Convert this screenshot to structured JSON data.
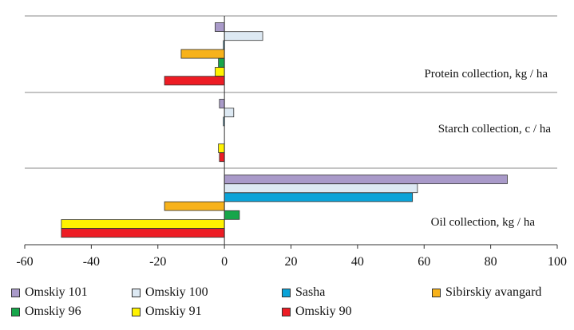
{
  "chart_data": {
    "type": "bar",
    "orientation": "horizontal",
    "xlim": [
      -60,
      100
    ],
    "xticks": [
      -60,
      -40,
      -20,
      0,
      20,
      40,
      60,
      80,
      100
    ],
    "grid": false,
    "groups": [
      {
        "label": "Protein collection, kg / ha"
      },
      {
        "label": "Starch collection, c / ha"
      },
      {
        "label": "Oil collection, kg / ha"
      }
    ],
    "series": [
      {
        "name": "Omskiy 101",
        "color": "#a99ac9",
        "values": [
          -2.8,
          -1.5,
          85
        ]
      },
      {
        "name": "Omskiy 100",
        "color": "#dde9f3",
        "values": [
          11.5,
          2.8,
          58
        ]
      },
      {
        "name": "Sasha",
        "color": "#0aa3d8",
        "values": [
          -0.3,
          -0.3,
          56.5
        ]
      },
      {
        "name": "Sibirskiy avangard",
        "color": "#f7b21b",
        "values": [
          -13,
          0,
          -18
        ]
      },
      {
        "name": "Omskiy 96",
        "color": "#17a64a",
        "values": [
          -1.8,
          0,
          4.5
        ]
      },
      {
        "name": "Omskiy 91",
        "color": "#fff200",
        "values": [
          -2.8,
          -1.8,
          -49
        ]
      },
      {
        "name": "Omskiy 90",
        "color": "#ed1c24",
        "values": [
          -18,
          -1.5,
          -49
        ]
      }
    ]
  }
}
